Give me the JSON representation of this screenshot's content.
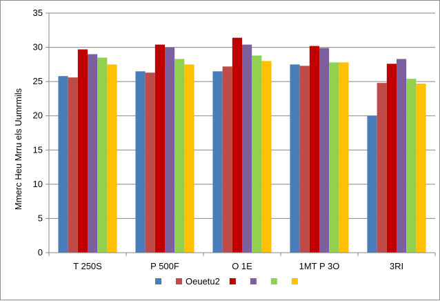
{
  "chart_data": {
    "type": "bar",
    "title": "",
    "xlabel": "",
    "ylabel": "Mmerc Heu Mrru els Uumrmils",
    "ylim": [
      0,
      35
    ],
    "ytick_step": 5,
    "yticks": [
      "0",
      "5",
      "10",
      "15",
      "20",
      "25",
      "30",
      "35"
    ],
    "grid": "horizontal",
    "legend_position": "bottom",
    "categories": [
      "T 250S",
      "P 500F",
      "O 1E",
      "1MT P 3O",
      "3RI"
    ],
    "series": [
      {
        "color": "#4a7ebb",
        "values": [
          25.8,
          26.5,
          26.5,
          27.5,
          20.0
        ]
      },
      {
        "name": "Oeuetu2",
        "color": "#be4b48",
        "values": [
          25.6,
          26.3,
          27.2,
          27.3,
          24.8
        ]
      },
      {
        "color": "#c00000",
        "values": [
          29.7,
          30.4,
          31.4,
          30.2,
          27.6
        ]
      },
      {
        "color": "#7d5fa0",
        "values": [
          29.0,
          30.0,
          30.4,
          29.9,
          28.3
        ]
      },
      {
        "color": "#92d050",
        "values": [
          28.5,
          28.3,
          28.8,
          27.8,
          25.4
        ]
      },
      {
        "color": "#ffc000",
        "values": [
          27.5,
          27.5,
          28.0,
          27.8,
          24.7
        ]
      }
    ]
  }
}
